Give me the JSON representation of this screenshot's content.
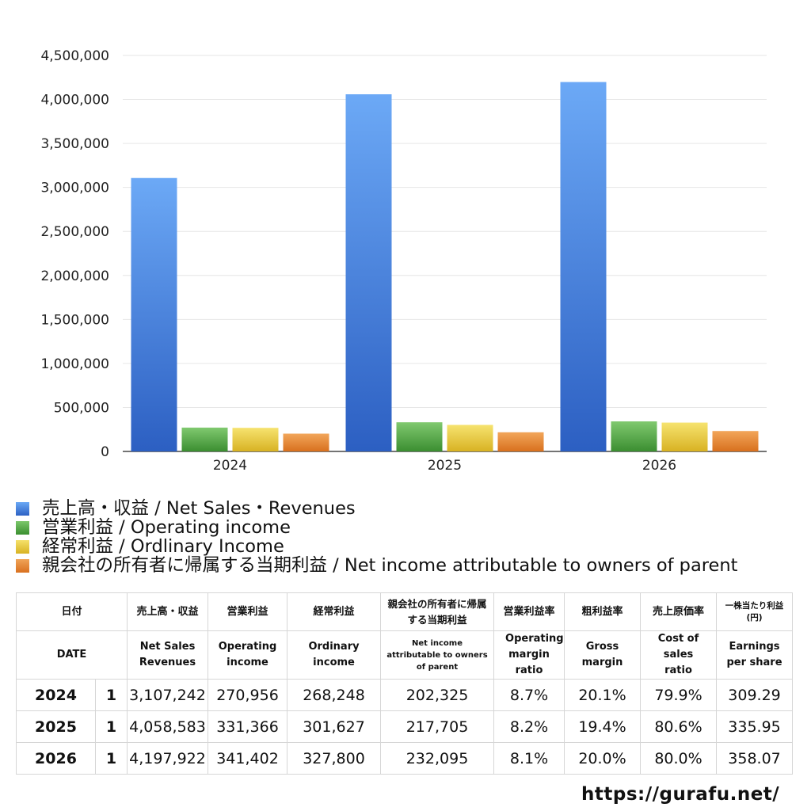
{
  "colors": {
    "net_sales": "#3f7fe0",
    "operating_income": "#4aa640",
    "ordinary_income": "#e6c431",
    "net_income": "#e28330"
  },
  "chart_data": {
    "type": "bar",
    "categories": [
      "2024",
      "2025",
      "2026"
    ],
    "ylim": [
      0,
      4500000
    ],
    "y_ticks": [
      "0",
      "500,000",
      "1,000,000",
      "1,500,000",
      "2,000,000",
      "2,500,000",
      "3,000,000",
      "3,500,000",
      "4,000,000",
      "4,500,000"
    ],
    "grid": true,
    "legend_position": "bottom",
    "series": [
      {
        "name": "売上高・収益 / Net Sales・Revenues",
        "values": [
          3107242,
          4058583,
          4197922
        ]
      },
      {
        "name": "営業利益 / Operating income",
        "values": [
          270956,
          331366,
          341402
        ]
      },
      {
        "name": "経常利益 / Ordlinary Income",
        "values": [
          268248,
          301627,
          327800
        ]
      },
      {
        "name": "親会社の所有者に帰属する当期利益 / Net income attributable to owners of parent",
        "values": [
          202325,
          217705,
          232095
        ]
      }
    ]
  },
  "table": {
    "headers_jp": [
      "日付",
      "売上高・収益",
      "営業利益",
      "経常利益",
      "親会社の所有者に帰属する当期利益",
      "営業利益率",
      "粗利益率",
      "売上原価率",
      "一株当たり利益(円)"
    ],
    "headers_en": [
      "DATE",
      "Net Sales Revenues",
      "Operating income",
      "Ordinary income",
      "Net income attributable to owners of parent",
      "Operating margin ratio",
      "Gross margin",
      "Cost of sales ratio",
      "Earnings per share"
    ],
    "rows": [
      {
        "year": "2024",
        "q": "1",
        "net_sales": "3,107,242",
        "operating": "270,956",
        "ordinary": "268,248",
        "net_income": "202,325",
        "op_margin": "8.7%",
        "gross_margin": "20.1%",
        "cost_ratio": "79.9%",
        "eps": "309.29"
      },
      {
        "year": "2025",
        "q": "1",
        "net_sales": "4,058,583",
        "operating": "331,366",
        "ordinary": "301,627",
        "net_income": "217,705",
        "op_margin": "8.2%",
        "gross_margin": "19.4%",
        "cost_ratio": "80.6%",
        "eps": "335.95"
      },
      {
        "year": "2026",
        "q": "1",
        "net_sales": "4,197,922",
        "operating": "341,402",
        "ordinary": "327,800",
        "net_income": "232,095",
        "op_margin": "8.1%",
        "gross_margin": "20.0%",
        "cost_ratio": "80.0%",
        "eps": "358.07"
      }
    ]
  },
  "footer": {
    "url": "https://gurafu.net/"
  }
}
